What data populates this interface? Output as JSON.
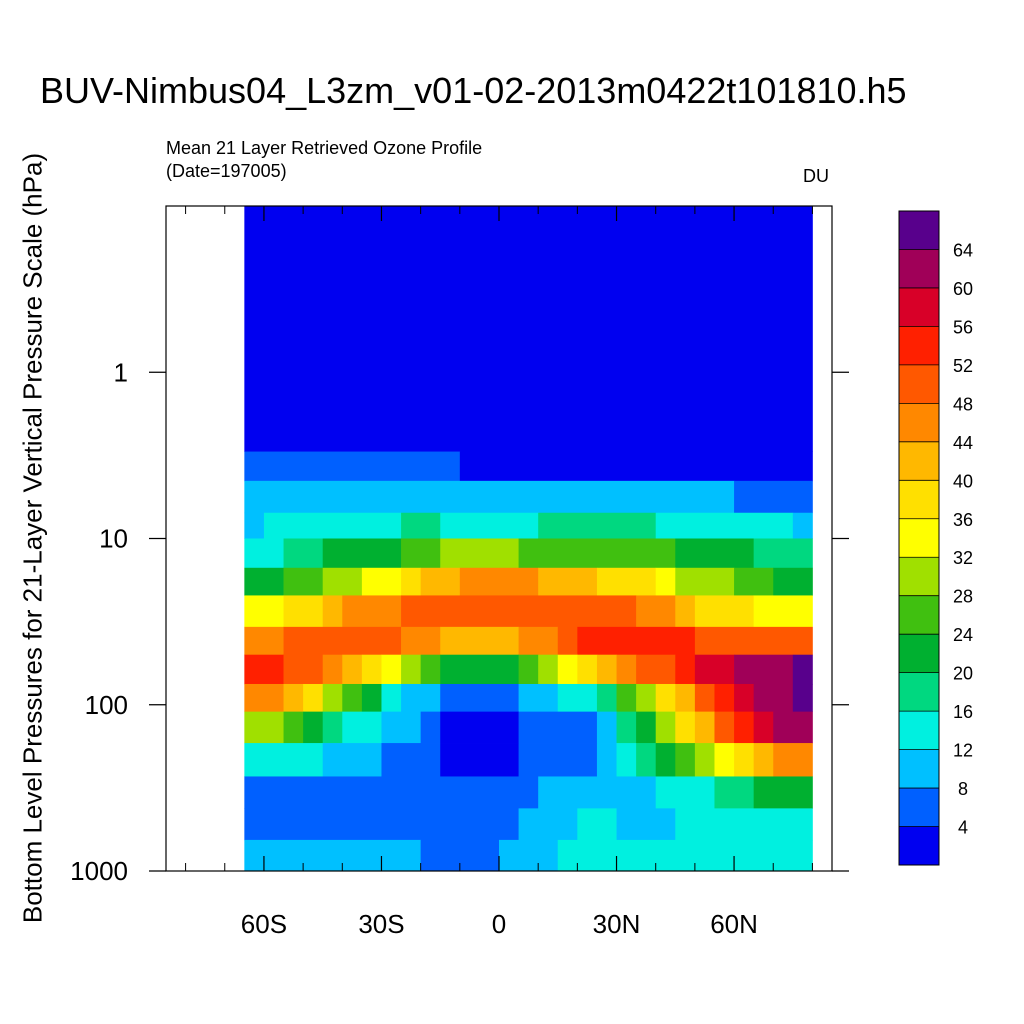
{
  "chart_data": {
    "type": "heatmap",
    "title": "BUV-Nimbus04_L3zm_v01-02-2013m0422t101810.h5",
    "subtitle_line1": "Mean 21 Layer Retrieved Ozone Profile",
    "subtitle_line2": "(Date=197005)",
    "units": "DU",
    "ylabel": "Bottom Level Pressures for 21-Layer Vertical Pressure Scale (hPa)",
    "xlim": [
      -85,
      85
    ],
    "ylim_log10": [
      -1,
      3
    ],
    "y_scale": "log",
    "x_ticks": [
      {
        "value": -60,
        "label": "60S"
      },
      {
        "value": -30,
        "label": "30S"
      },
      {
        "value": 0,
        "label": "0"
      },
      {
        "value": 30,
        "label": "30N"
      },
      {
        "value": 60,
        "label": "60N"
      }
    ],
    "y_ticks": [
      {
        "value": 1,
        "label": "1"
      },
      {
        "value": 10,
        "label": "10"
      },
      {
        "value": 100,
        "label": "100"
      },
      {
        "value": 1000,
        "label": "1000"
      }
    ],
    "lat_edges": [
      -65,
      -55,
      -45,
      -35,
      -25,
      -15,
      -5,
      5,
      15,
      25,
      35,
      45,
      55,
      65,
      75,
      80
    ],
    "lat_edges_fine": [
      -65,
      -60,
      -55,
      -50,
      -45,
      -40,
      -35,
      -30,
      -25,
      -20,
      -15,
      -10,
      -5,
      0,
      5,
      10,
      15,
      20,
      25,
      30,
      35,
      40,
      45,
      50,
      55,
      60,
      65,
      70,
      75,
      80
    ],
    "colorbar": {
      "labels": [
        "4",
        "8",
        "12",
        "16",
        "20",
        "24",
        "28",
        "32",
        "36",
        "40",
        "44",
        "48",
        "52",
        "56",
        "60",
        "64"
      ],
      "colors": [
        "#0000f0",
        "#0060ff",
        "#00c0ff",
        "#00f0e0",
        "#00d880",
        "#00b030",
        "#40c010",
        "#a0e000",
        "#ffff00",
        "#ffe000",
        "#ffb800",
        "#ff8800",
        "#ff5800",
        "#ff2000",
        "#d80028",
        "#a00058",
        "#58008c"
      ]
    },
    "layers": [
      {
        "p_top": 0.1,
        "p_bot": 3.0,
        "bands": [
          [
            -65,
            80,
            0
          ]
        ]
      },
      {
        "p_top": 3.0,
        "p_bot": 4.5,
        "bands": [
          [
            -65,
            -10,
            1
          ],
          [
            -10,
            80,
            0
          ]
        ]
      },
      {
        "p_top": 4.5,
        "p_bot": 7.0,
        "bands": [
          [
            -65,
            60,
            2
          ],
          [
            60,
            80,
            1
          ]
        ]
      },
      {
        "p_top": 7.0,
        "p_bot": 10.0,
        "bands": [
          [
            -65,
            -60,
            2
          ],
          [
            -60,
            -25,
            3
          ],
          [
            -25,
            -15,
            4
          ],
          [
            -15,
            10,
            3
          ],
          [
            10,
            40,
            4
          ],
          [
            40,
            75,
            3
          ],
          [
            75,
            80,
            2
          ]
        ]
      },
      {
        "p_top": 10.0,
        "p_bot": 15.0,
        "bands": [
          [
            -65,
            -55,
            3
          ],
          [
            -55,
            -45,
            4
          ],
          [
            -45,
            -25,
            5
          ],
          [
            -25,
            -15,
            6
          ],
          [
            -15,
            5,
            7
          ],
          [
            5,
            35,
            6
          ],
          [
            35,
            45,
            6
          ],
          [
            45,
            65,
            5
          ],
          [
            65,
            80,
            4
          ]
        ]
      },
      {
        "p_top": 15.0,
        "p_bot": 22.0,
        "bands": [
          [
            -65,
            -55,
            5
          ],
          [
            -55,
            -45,
            6
          ],
          [
            -45,
            -35,
            7
          ],
          [
            -35,
            -25,
            8
          ],
          [
            -25,
            -20,
            9
          ],
          [
            -20,
            -10,
            10
          ],
          [
            -10,
            10,
            11
          ],
          [
            10,
            25,
            10
          ],
          [
            25,
            40,
            9
          ],
          [
            40,
            45,
            8
          ],
          [
            45,
            60,
            7
          ],
          [
            60,
            70,
            6
          ],
          [
            70,
            80,
            5
          ]
        ]
      },
      {
        "p_top": 22.0,
        "p_bot": 34.0,
        "bands": [
          [
            -65,
            -55,
            8
          ],
          [
            -55,
            -45,
            9
          ],
          [
            -45,
            -40,
            10
          ],
          [
            -40,
            -25,
            11
          ],
          [
            -25,
            35,
            12
          ],
          [
            35,
            45,
            11
          ],
          [
            45,
            50,
            10
          ],
          [
            50,
            65,
            9
          ],
          [
            65,
            80,
            8
          ]
        ]
      },
      {
        "p_top": 34.0,
        "p_bot": 50.0,
        "bands": [
          [
            -65,
            -55,
            11
          ],
          [
            -55,
            -25,
            12
          ],
          [
            -25,
            -15,
            11
          ],
          [
            -15,
            5,
            10
          ],
          [
            5,
            15,
            11
          ],
          [
            15,
            20,
            12
          ],
          [
            20,
            50,
            13
          ],
          [
            50,
            80,
            12
          ]
        ]
      },
      {
        "p_top": 50.0,
        "p_bot": 75.0,
        "bands": [
          [
            -65,
            -55,
            13
          ],
          [
            -55,
            -45,
            12
          ],
          [
            -45,
            -40,
            11
          ],
          [
            -40,
            -35,
            10
          ],
          [
            -35,
            -30,
            9
          ],
          [
            -30,
            -25,
            8
          ],
          [
            -25,
            -20,
            7
          ],
          [
            -20,
            -15,
            6
          ],
          [
            -15,
            5,
            5
          ],
          [
            5,
            10,
            6
          ],
          [
            10,
            15,
            7
          ],
          [
            15,
            20,
            8
          ],
          [
            20,
            25,
            9
          ],
          [
            25,
            30,
            10
          ],
          [
            30,
            35,
            11
          ],
          [
            35,
            45,
            12
          ],
          [
            45,
            50,
            13
          ],
          [
            50,
            60,
            14
          ],
          [
            60,
            75,
            15
          ],
          [
            75,
            80,
            16
          ]
        ]
      },
      {
        "p_top": 75.0,
        "p_bot": 110.0,
        "bands": [
          [
            -65,
            -55,
            11
          ],
          [
            -55,
            -50,
            10
          ],
          [
            -50,
            -45,
            9
          ],
          [
            -45,
            -40,
            7
          ],
          [
            -40,
            -35,
            6
          ],
          [
            -35,
            -30,
            5
          ],
          [
            -30,
            -25,
            3
          ],
          [
            -25,
            -15,
            2
          ],
          [
            -15,
            5,
            1
          ],
          [
            5,
            15,
            2
          ],
          [
            15,
            25,
            3
          ],
          [
            25,
            30,
            4
          ],
          [
            30,
            35,
            6
          ],
          [
            35,
            40,
            7
          ],
          [
            40,
            45,
            9
          ],
          [
            45,
            50,
            10
          ],
          [
            50,
            55,
            12
          ],
          [
            55,
            60,
            13
          ],
          [
            60,
            65,
            14
          ],
          [
            65,
            75,
            15
          ],
          [
            75,
            80,
            16
          ]
        ]
      },
      {
        "p_top": 110.0,
        "p_bot": 170.0,
        "bands": [
          [
            -65,
            -55,
            7
          ],
          [
            -55,
            -50,
            6
          ],
          [
            -50,
            -45,
            5
          ],
          [
            -45,
            -40,
            4
          ],
          [
            -40,
            -30,
            3
          ],
          [
            -30,
            -20,
            2
          ],
          [
            -20,
            -15,
            1
          ],
          [
            -15,
            5,
            0
          ],
          [
            5,
            25,
            1
          ],
          [
            25,
            30,
            2
          ],
          [
            30,
            35,
            4
          ],
          [
            35,
            40,
            5
          ],
          [
            40,
            45,
            7
          ],
          [
            45,
            50,
            9
          ],
          [
            50,
            55,
            10
          ],
          [
            55,
            60,
            12
          ],
          [
            60,
            65,
            13
          ],
          [
            65,
            70,
            14
          ],
          [
            70,
            80,
            15
          ]
        ]
      },
      {
        "p_top": 170.0,
        "p_bot": 270.0,
        "bands": [
          [
            -65,
            -45,
            3
          ],
          [
            -45,
            -30,
            2
          ],
          [
            -30,
            -20,
            1
          ],
          [
            -20,
            -15,
            1
          ],
          [
            -15,
            5,
            0
          ],
          [
            5,
            25,
            1
          ],
          [
            25,
            30,
            2
          ],
          [
            30,
            35,
            3
          ],
          [
            35,
            40,
            4
          ],
          [
            40,
            45,
            5
          ],
          [
            45,
            50,
            6
          ],
          [
            50,
            55,
            7
          ],
          [
            55,
            60,
            8
          ],
          [
            60,
            65,
            9
          ],
          [
            65,
            70,
            10
          ],
          [
            70,
            75,
            11
          ],
          [
            75,
            80,
            11
          ]
        ]
      },
      {
        "p_top": 270.0,
        "p_bot": 420.0,
        "bands": [
          [
            -65,
            10,
            1
          ],
          [
            10,
            40,
            2
          ],
          [
            40,
            55,
            3
          ],
          [
            55,
            65,
            4
          ],
          [
            65,
            80,
            5
          ]
        ]
      },
      {
        "p_top": 420.0,
        "p_bot": 650.0,
        "bands": [
          [
            -65,
            5,
            1
          ],
          [
            5,
            20,
            2
          ],
          [
            20,
            30,
            3
          ],
          [
            30,
            45,
            2
          ],
          [
            45,
            80,
            3
          ]
        ]
      },
      {
        "p_top": 650.0,
        "p_bot": 1000.0,
        "bands": [
          [
            -65,
            -20,
            2
          ],
          [
            -20,
            0,
            1
          ],
          [
            0,
            15,
            2
          ],
          [
            15,
            80,
            3
          ]
        ]
      }
    ]
  }
}
